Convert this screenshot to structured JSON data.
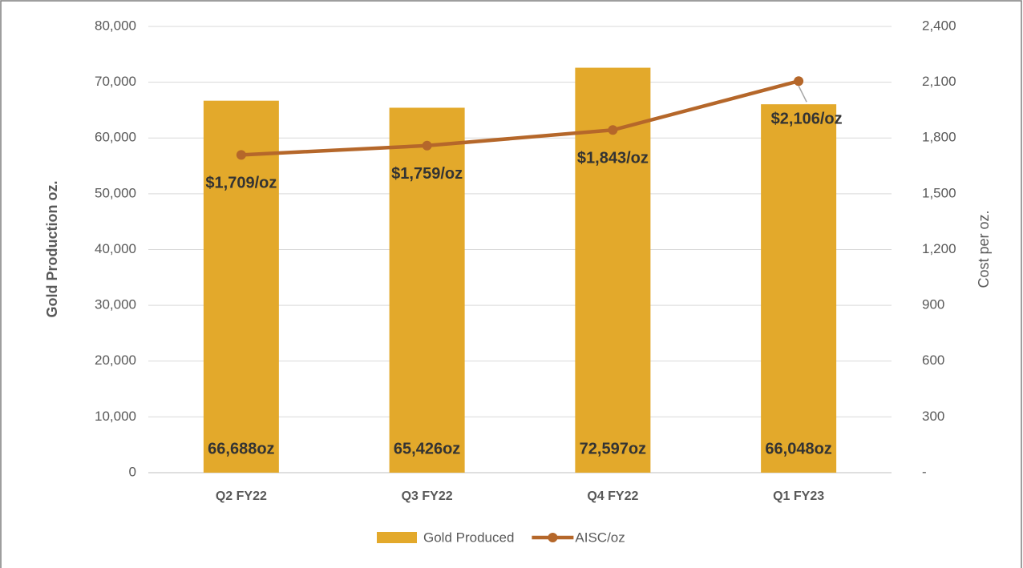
{
  "chart_data": {
    "type": "bar",
    "categories": [
      "Q2 FY22",
      "Q3 FY22",
      "Q4 FY22",
      "Q1 FY23"
    ],
    "series": [
      {
        "name": "Gold Produced",
        "type": "bar",
        "color": "#e3a92b",
        "axis": "y",
        "values": [
          66688,
          65426,
          72597,
          66048
        ],
        "value_labels": [
          "66,688oz",
          "65,426oz",
          "72,597oz",
          "66,048oz"
        ]
      },
      {
        "name": "AISC/oz",
        "type": "line",
        "color": "#b5672a",
        "axis": "y2",
        "values": [
          1709,
          1759,
          1843,
          2106
        ],
        "value_labels": [
          "$1,709/oz",
          "$1,759/oz",
          "$1,843/oz",
          "$2,106/oz"
        ]
      }
    ],
    "ylabel": "Gold Production oz.",
    "y2label": "Cost per oz.",
    "ylim": [
      0,
      80000
    ],
    "yticks": [
      0,
      {
        "value": 10000,
        "label": "10,000"
      },
      {
        "value": 20000,
        "label": "20,000"
      },
      {
        "value": 30000,
        "label": "30,000"
      },
      {
        "value": 40000,
        "label": "40,000"
      },
      {
        "value": 50000,
        "label": "50,000"
      },
      {
        "value": 60000,
        "label": "60,000"
      },
      {
        "value": 70000,
        "label": "70,000"
      },
      {
        "value": 80000,
        "label": "80,000"
      }
    ],
    "y2lim": [
      0,
      2400
    ],
    "y2ticks": [
      {
        "value": 0,
        "label": "-"
      },
      300,
      600,
      900,
      {
        "value": 1200,
        "label": "1,200"
      },
      {
        "value": 1500,
        "label": "1,500"
      },
      {
        "value": 1800,
        "label": "1,800"
      },
      {
        "value": 2100,
        "label": "2,100"
      },
      {
        "value": 2400,
        "label": "2,400"
      }
    ],
    "grid": true,
    "legend": "bottom"
  }
}
